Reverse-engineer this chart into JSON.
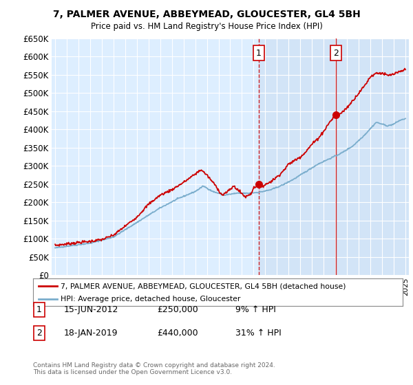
{
  "title": "7, PALMER AVENUE, ABBEYMEAD, GLOUCESTER, GL4 5BH",
  "subtitle": "Price paid vs. HM Land Registry's House Price Index (HPI)",
  "legend_line1": "7, PALMER AVENUE, ABBEYMEAD, GLOUCESTER, GL4 5BH (detached house)",
  "legend_line2": "HPI: Average price, detached house, Gloucester",
  "annotation1_label": "1",
  "annotation1_date": "15-JUN-2012",
  "annotation1_price": "£250,000",
  "annotation1_hpi": "9% ↑ HPI",
  "annotation2_label": "2",
  "annotation2_date": "18-JAN-2019",
  "annotation2_price": "£440,000",
  "annotation2_hpi": "31% ↑ HPI",
  "footer": "Contains HM Land Registry data © Crown copyright and database right 2024.\nThis data is licensed under the Open Government Licence v3.0.",
  "red_color": "#cc0000",
  "blue_color": "#7aadcc",
  "bg_color": "#ddeeff",
  "shade_color": "#c5d8f0",
  "ylim": [
    0,
    650000
  ],
  "yticks": [
    0,
    50000,
    100000,
    150000,
    200000,
    250000,
    300000,
    350000,
    400000,
    450000,
    500000,
    550000,
    600000,
    650000
  ],
  "vline1_x": 2012.45,
  "vline2_x": 2019.05,
  "dot1_x": 2012.45,
  "dot1_y": 250000,
  "dot2_x": 2019.05,
  "dot2_y": 440000,
  "xmin": 1994.7,
  "xmax": 2025.3
}
